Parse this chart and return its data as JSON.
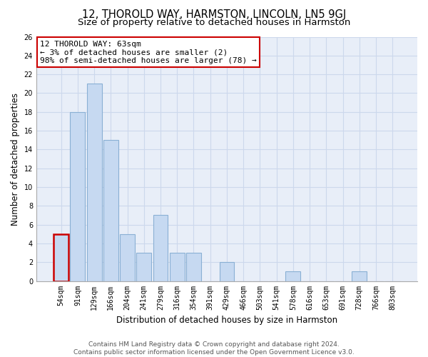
{
  "title": "12, THOROLD WAY, HARMSTON, LINCOLN, LN5 9GJ",
  "subtitle": "Size of property relative to detached houses in Harmston",
  "xlabel": "Distribution of detached houses by size in Harmston",
  "ylabel": "Number of detached properties",
  "bin_labels": [
    "54sqm",
    "91sqm",
    "129sqm",
    "166sqm",
    "204sqm",
    "241sqm",
    "279sqm",
    "316sqm",
    "354sqm",
    "391sqm",
    "429sqm",
    "466sqm",
    "503sqm",
    "541sqm",
    "578sqm",
    "616sqm",
    "653sqm",
    "691sqm",
    "728sqm",
    "766sqm",
    "803sqm"
  ],
  "values": [
    5,
    18,
    21,
    15,
    5,
    3,
    7,
    3,
    3,
    0,
    2,
    0,
    0,
    0,
    1,
    0,
    0,
    0,
    1,
    0,
    0
  ],
  "bar_color": "#c6d9f1",
  "bar_edge_color": "#8ab0d4",
  "highlight_bar_index": 0,
  "highlight_edge_color": "#cc0000",
  "annotation_line1": "12 THOROLD WAY: 63sqm",
  "annotation_line2": "← 3% of detached houses are smaller (2)",
  "annotation_line3": "98% of semi-detached houses are larger (78) →",
  "footer_line1": "Contains HM Land Registry data © Crown copyright and database right 2024.",
  "footer_line2": "Contains public sector information licensed under the Open Government Licence v3.0.",
  "ylim": [
    0,
    26
  ],
  "yticks": [
    0,
    2,
    4,
    6,
    8,
    10,
    12,
    14,
    16,
    18,
    20,
    22,
    24,
    26
  ],
  "bg_color": "#ffffff",
  "grid_color": "#ccd8ec",
  "plot_bg_color": "#e8eef8",
  "title_fontsize": 10.5,
  "subtitle_fontsize": 9.5,
  "axis_label_fontsize": 8.5,
  "tick_fontsize": 7,
  "annotation_fontsize": 8,
  "footer_fontsize": 6.5
}
